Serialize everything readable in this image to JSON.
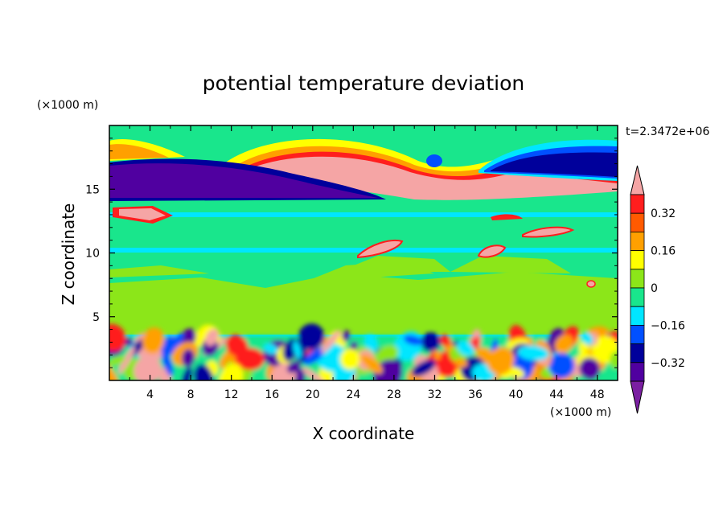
{
  "chart_data": {
    "type": "heatmap",
    "title": "potential temperature deviation",
    "xlabel": "X coordinate",
    "ylabel": "Z coordinate",
    "x_unit": "(×1000 m)",
    "y_unit": "(×1000 m)",
    "time_label": "t=2.3472e+06",
    "xlim": [
      0,
      50
    ],
    "ylim": [
      0,
      20
    ],
    "x_ticks": [
      4,
      8,
      12,
      16,
      20,
      24,
      28,
      32,
      36,
      40,
      44,
      48
    ],
    "y_ticks": [
      5,
      10,
      15
    ],
    "colorbar": {
      "levels": [
        -0.4,
        -0.32,
        -0.24,
        -0.16,
        -0.08,
        0,
        0.08,
        0.16,
        0.24,
        0.32,
        0.4
      ],
      "labels": [
        "0.32",
        "0.16",
        "0",
        "−0.16",
        "−0.32"
      ],
      "label_values": [
        0.32,
        0.16,
        0,
        -0.16,
        -0.32
      ],
      "colors": [
        "#7b1fa2",
        "#5000a0",
        "#00009b",
        "#0050ff",
        "#00e6ff",
        "#19e68c",
        "#8ce619",
        "#ffff00",
        "#ffa000",
        "#ff5a00",
        "#ff1e1e",
        "#f5a5a5"
      ]
    },
    "regions": [
      {
        "x0": 0,
        "x1": 50,
        "z0": 0,
        "z1": 20,
        "v": 0.04
      },
      {
        "x0": 0,
        "x1": 50,
        "z0": 4.5,
        "z1": 8,
        "v": 0.1
      },
      {
        "x0": 0,
        "x1": 50,
        "z0": 10,
        "z1": 10.4,
        "v": -0.12
      },
      {
        "x0": 0,
        "x1": 50,
        "z0": 12.8,
        "z1": 13.2,
        "v": -0.12
      },
      {
        "x0": 0,
        "x1": 50,
        "z0": 14.1,
        "z1": 14.6,
        "v": -0.12
      },
      {
        "x0": 0,
        "x1": 50,
        "z0": 16.6,
        "z1": 17.2,
        "v": -0.1
      },
      {
        "x0": 0,
        "x1": 50,
        "z0": 3.4,
        "z1": 3.6,
        "v": -0.12
      }
    ]
  }
}
